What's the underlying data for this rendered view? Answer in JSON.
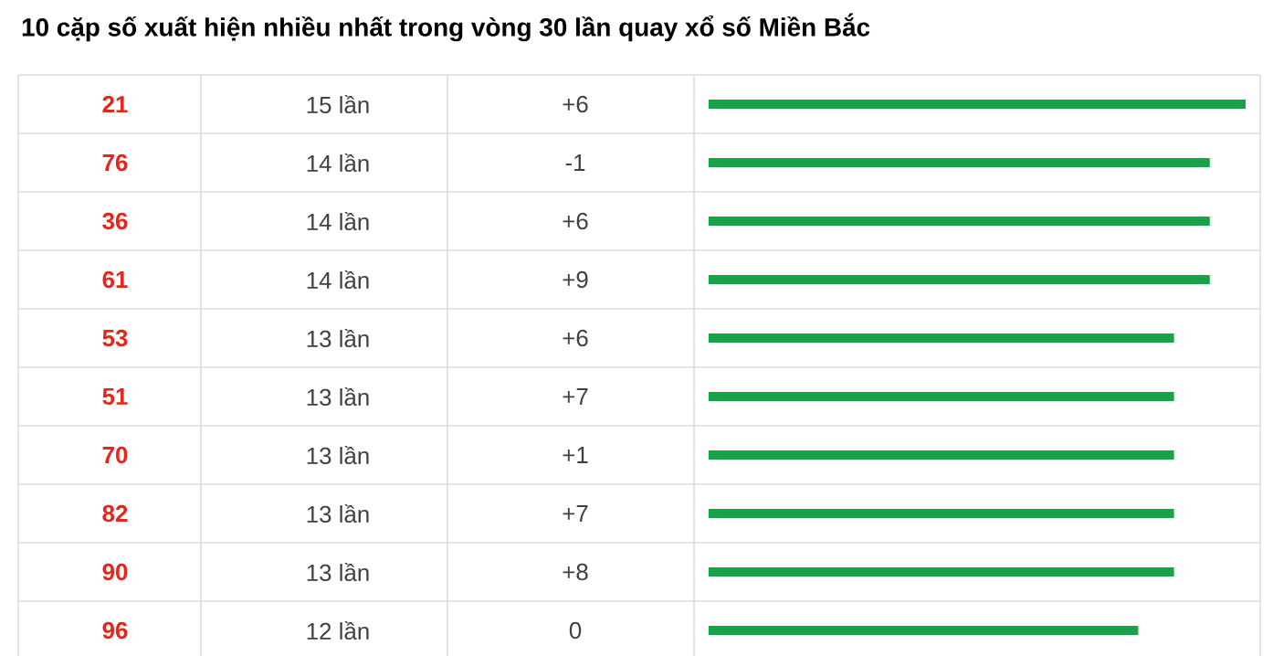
{
  "chart_data": {
    "type": "bar",
    "orientation": "horizontal",
    "title": "10 cặp số xuất hiện nhiều nhất trong vòng 30 lần quay xổ số Miền Bắc",
    "categories": [
      "21",
      "76",
      "36",
      "61",
      "53",
      "51",
      "70",
      "82",
      "90",
      "96"
    ],
    "values": [
      15,
      14,
      14,
      14,
      13,
      13,
      13,
      13,
      13,
      12
    ],
    "value_labels": [
      "15 lần",
      "14 lần",
      "14 lần",
      "14 lần",
      "13 lần",
      "13 lần",
      "13 lần",
      "13 lần",
      "13 lần",
      "12 lần"
    ],
    "annotations": [
      "+6",
      "-1",
      "+6",
      "+9",
      "+6",
      "+7",
      "+1",
      "+7",
      "+8",
      "0"
    ],
    "color": "#16a34a",
    "xlim": [
      0,
      15
    ]
  }
}
